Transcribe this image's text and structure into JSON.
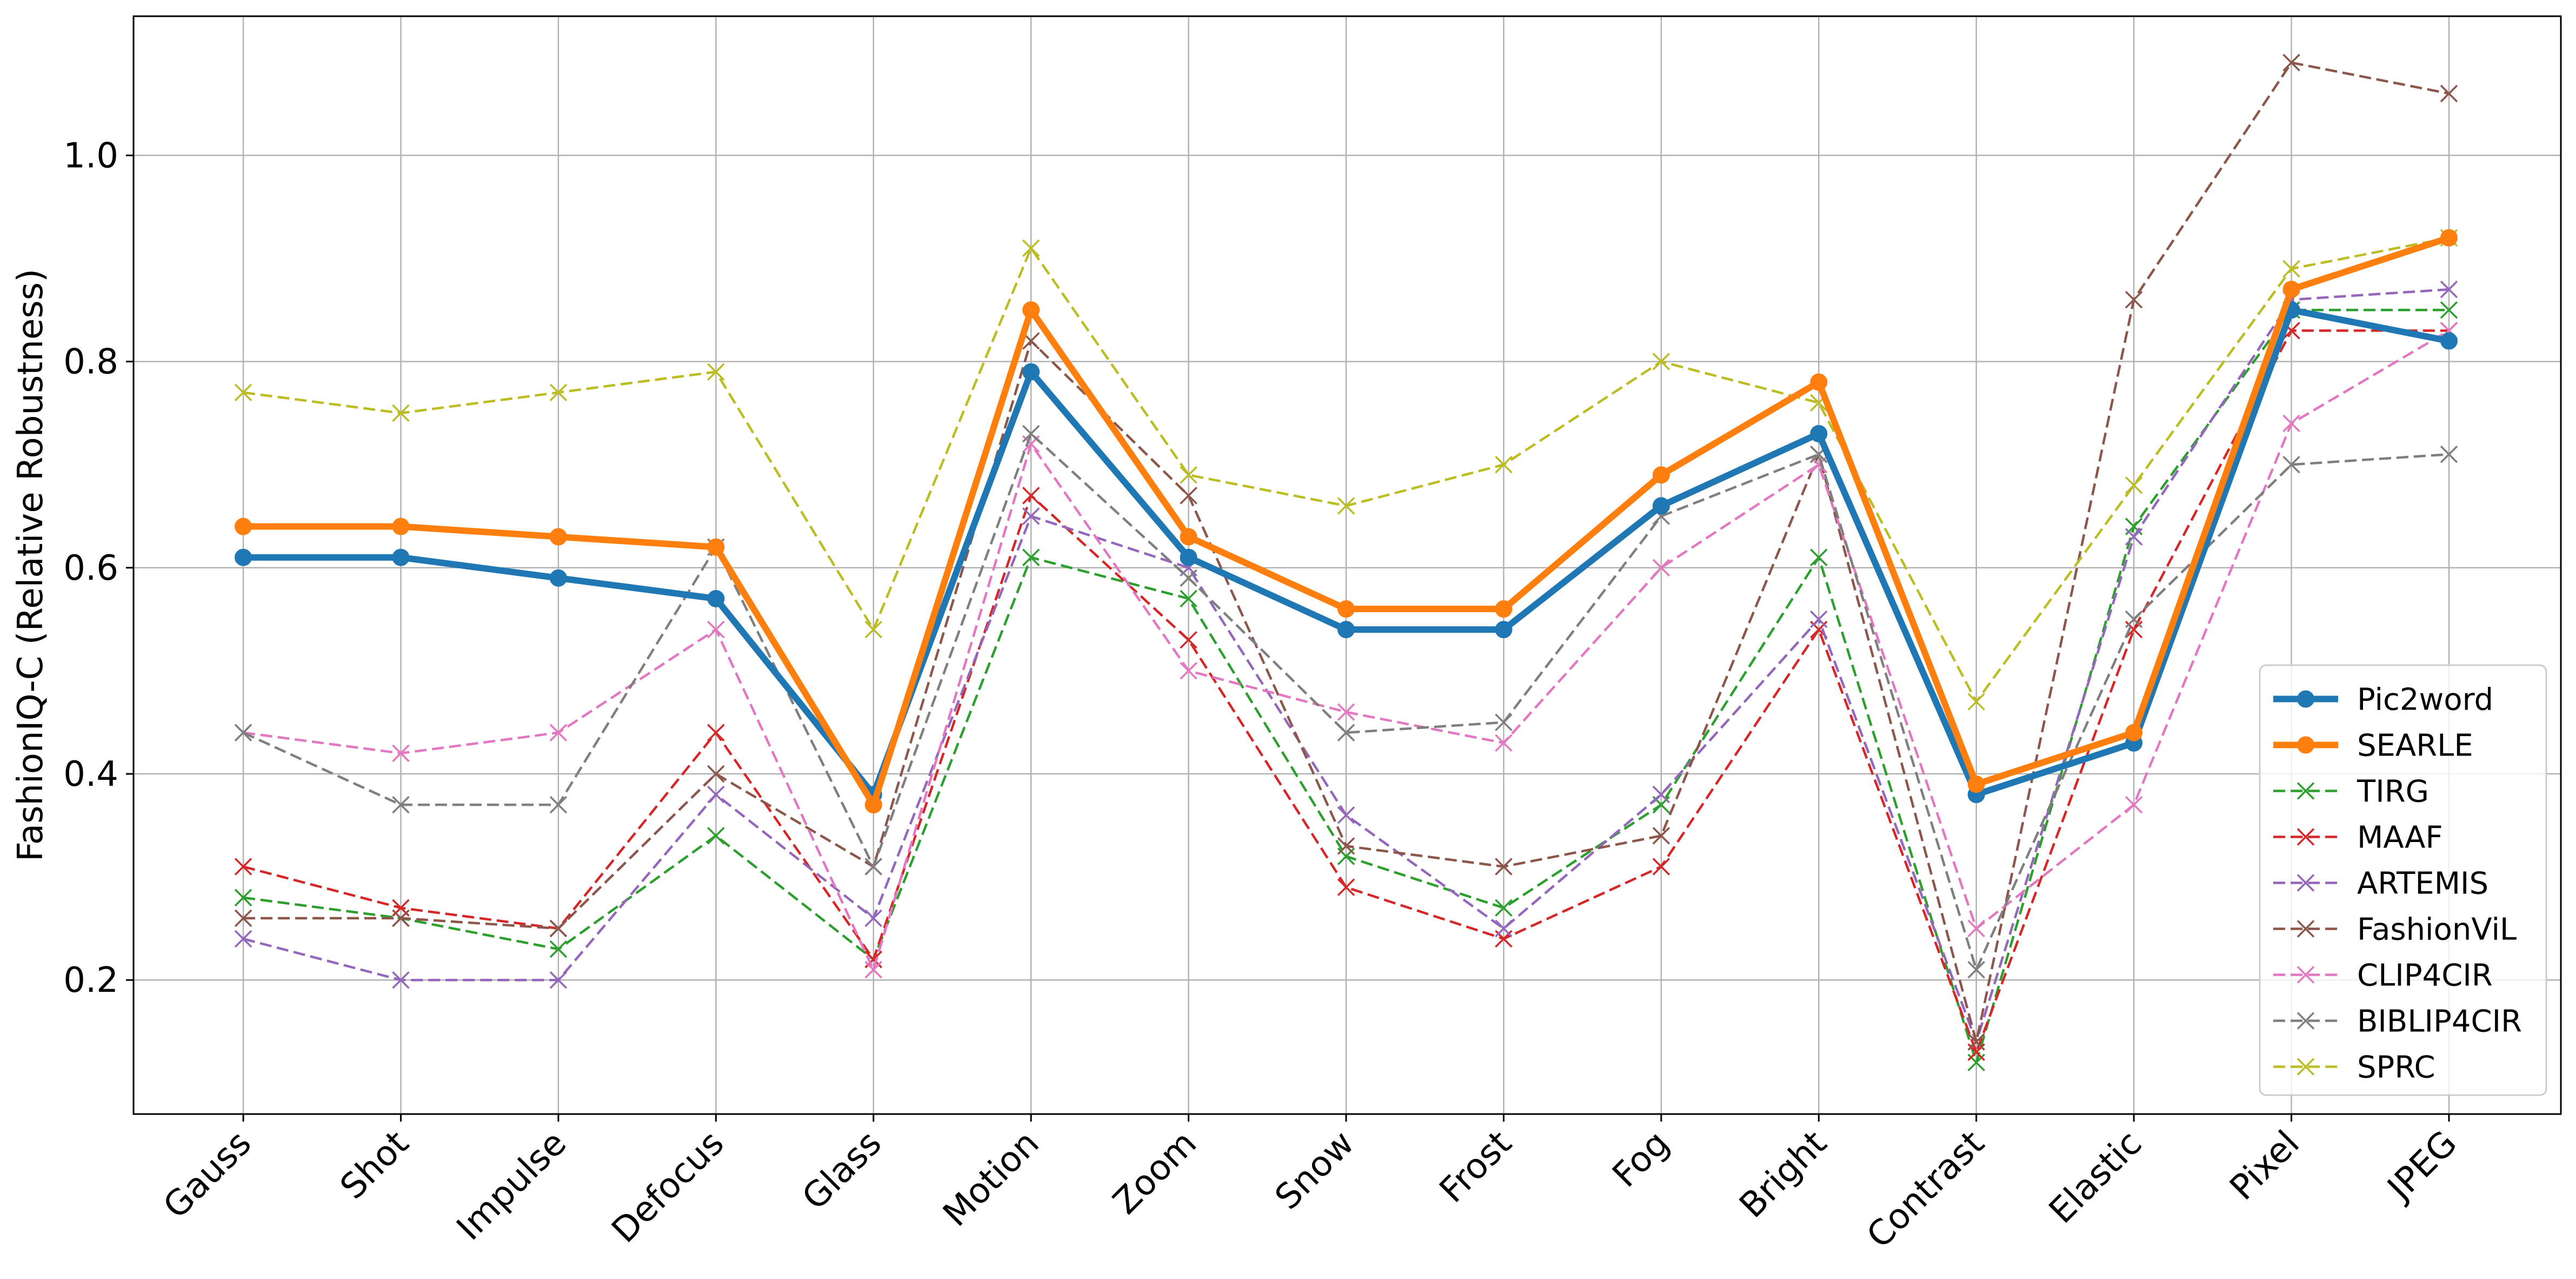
{
  "chart_data": {
    "type": "line",
    "title": "",
    "xlabel": "",
    "ylabel": "FashionIQ-C (Relative Robustness)",
    "ylim": [
      0.07,
      1.135
    ],
    "yticks": [
      0.2,
      0.4,
      0.6,
      0.8,
      1.0
    ],
    "ytick_labels": [
      "0.2",
      "0.4",
      "0.6",
      "0.8",
      "1.0"
    ],
    "grid": true,
    "legend_position": "lower-right",
    "categories": [
      "Gauss",
      "Shot",
      "Impulse",
      "Defocus",
      "Glass",
      "Motion",
      "Zoom",
      "Snow",
      "Frost",
      "Fog",
      "Bright",
      "Contrast",
      "Elastic",
      "Pixel",
      "JPEG"
    ],
    "series": [
      {
        "name": "Pic2word",
        "color": "#1f77b4",
        "style": "solid",
        "marker": "circle",
        "values": [
          0.61,
          0.61,
          0.59,
          0.57,
          0.38,
          0.79,
          0.61,
          0.54,
          0.54,
          0.66,
          0.73,
          0.38,
          0.43,
          0.85,
          0.82
        ]
      },
      {
        "name": "SEARLE",
        "color": "#ff7f0e",
        "style": "solid",
        "marker": "circle",
        "values": [
          0.64,
          0.64,
          0.63,
          0.62,
          0.37,
          0.85,
          0.63,
          0.56,
          0.56,
          0.69,
          0.78,
          0.39,
          0.44,
          0.87,
          0.92
        ]
      },
      {
        "name": "TIRG",
        "color": "#2ca02c",
        "style": "dashed",
        "marker": "x",
        "values": [
          0.28,
          0.26,
          0.23,
          0.34,
          0.22,
          0.61,
          0.57,
          0.32,
          0.27,
          0.37,
          0.61,
          0.12,
          0.64,
          0.85,
          0.85
        ]
      },
      {
        "name": "MAAF",
        "color": "#d62728",
        "style": "dashed",
        "marker": "x",
        "values": [
          0.31,
          0.27,
          0.25,
          0.44,
          0.22,
          0.67,
          0.53,
          0.29,
          0.24,
          0.31,
          0.54,
          0.13,
          0.54,
          0.83,
          0.83
        ]
      },
      {
        "name": "ARTEMIS",
        "color": "#9467bd",
        "style": "dashed",
        "marker": "x",
        "values": [
          0.24,
          0.2,
          0.2,
          0.38,
          0.26,
          0.65,
          0.6,
          0.36,
          0.25,
          0.38,
          0.55,
          0.14,
          0.63,
          0.86,
          0.87
        ]
      },
      {
        "name": "FashionViL",
        "color": "#8c564b",
        "style": "dashed",
        "marker": "x",
        "values": [
          0.26,
          0.26,
          0.25,
          0.4,
          0.31,
          0.82,
          0.67,
          0.33,
          0.31,
          0.34,
          0.71,
          0.14,
          0.86,
          1.09,
          1.06
        ]
      },
      {
        "name": "CLIP4CIR",
        "color": "#e377c2",
        "style": "dashed",
        "marker": "x",
        "values": [
          0.44,
          0.42,
          0.44,
          0.54,
          0.21,
          0.72,
          0.5,
          0.46,
          0.43,
          0.6,
          0.7,
          0.25,
          0.37,
          0.74,
          0.83
        ]
      },
      {
        "name": "BIBLIP4CIR",
        "color": "#7f7f7f",
        "style": "dashed",
        "marker": "x",
        "values": [
          0.44,
          0.37,
          0.37,
          0.62,
          0.31,
          0.73,
          0.59,
          0.44,
          0.45,
          0.65,
          0.71,
          0.21,
          0.55,
          0.7,
          0.71
        ]
      },
      {
        "name": "SPRC",
        "color": "#bcbd22",
        "style": "dashed",
        "marker": "x",
        "values": [
          0.77,
          0.75,
          0.77,
          0.79,
          0.54,
          0.91,
          0.69,
          0.66,
          0.7,
          0.8,
          0.76,
          0.47,
          0.68,
          0.89,
          0.92
        ]
      }
    ]
  }
}
